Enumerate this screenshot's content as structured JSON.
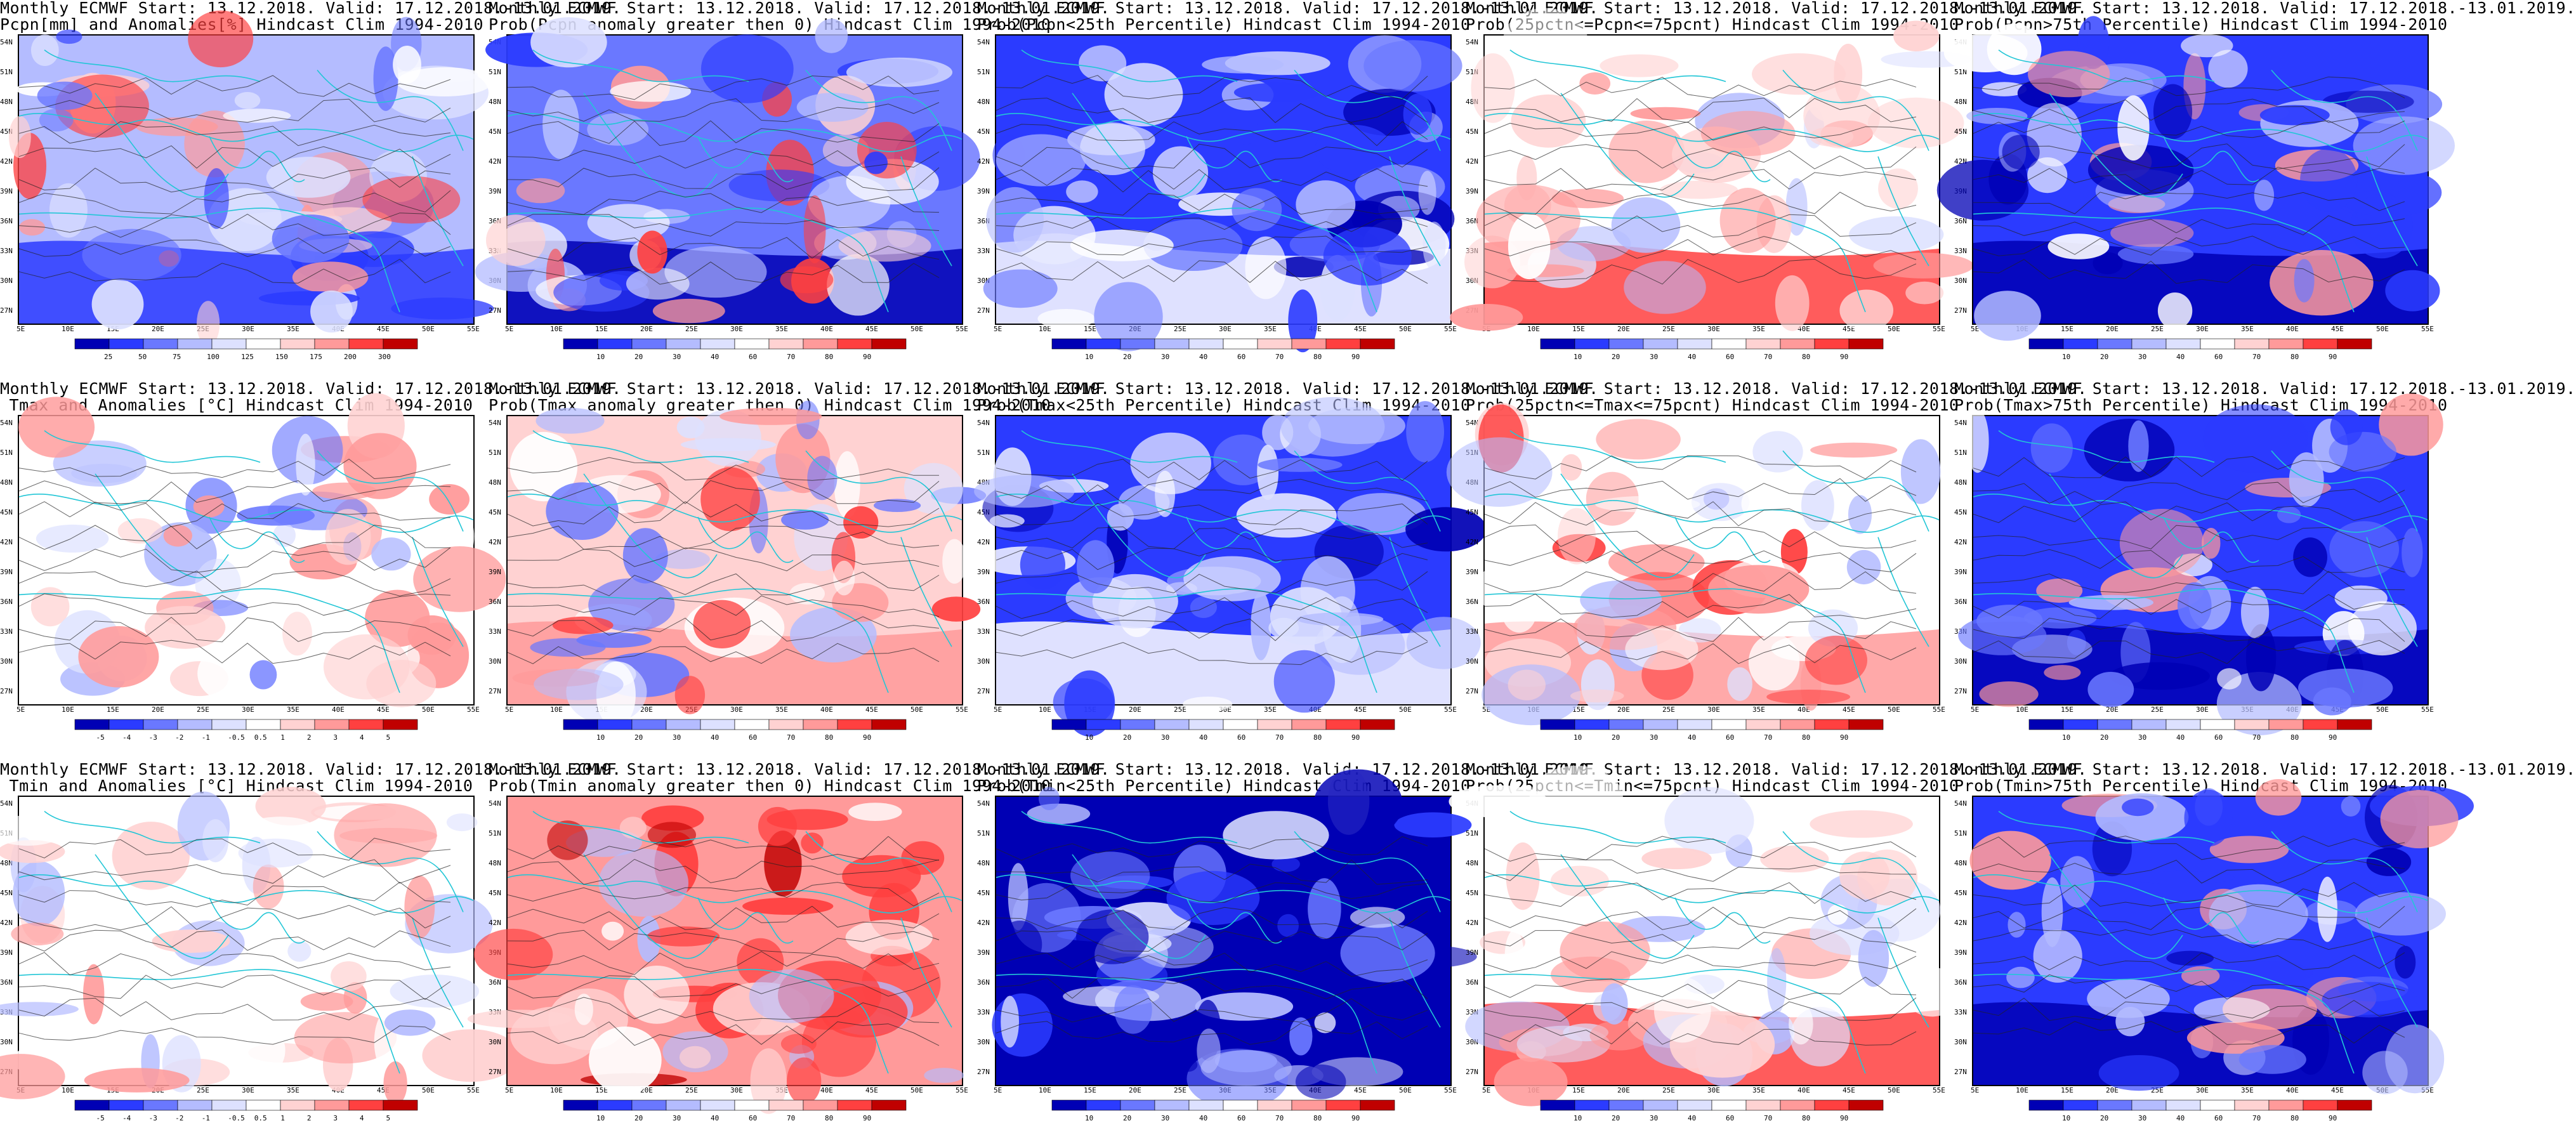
{
  "figure": {
    "lat_labels": [
      "54N",
      "51N",
      "48N",
      "45N",
      "42N",
      "39N",
      "36N",
      "33N",
      "30N",
      "27N"
    ],
    "lon_labels": [
      "5E",
      "10E",
      "15E",
      "20E",
      "25E",
      "30E",
      "35E",
      "40E",
      "45E",
      "50E",
      "55E"
    ],
    "palette": {
      "deep_blue": "#0000b4",
      "blue": "#2b3bff",
      "mid_blue": "#6a78ff",
      "light_blue": "#b4bcff",
      "pale_blue": "#dde1ff",
      "white": "#ffffff",
      "pale_red": "#ffd2d2",
      "light_red": "#ff9a9a",
      "red": "#ff4040",
      "deep_red": "#c00000",
      "coast": "#22c6d6",
      "contour": "#222222"
    }
  },
  "panels": [
    {
      "line1": "Monthly ECMWF Start: 13.12.2018. Valid: 17.12.2018.-13.01.2019.",
      "line2": "Pcpn[mm] and Anomalies[%] Hindcast Clim 1994-2010",
      "scheme": "pcpn_anom",
      "ticks": [
        "25",
        "50",
        "75",
        "100",
        "125",
        "150",
        "175",
        "200",
        "300"
      ]
    },
    {
      "line1": "Monthly ECMWF Start: 13.12.2018. Valid: 17.12.2018.-13.01.2019.",
      "line2": "Prob(Pcpn anomaly greater then 0) Hindcast Clim 1994-2010",
      "scheme": "prob_pos",
      "ticks": [
        "10",
        "20",
        "30",
        "40",
        "60",
        "70",
        "80",
        "90"
      ]
    },
    {
      "line1": "Monthly ECMWF Start: 13.12.2018. Valid: 17.12.2018.-13.01.2019.",
      "line2": "Prob(Pcpn<25th Percentile) Hindcast Clim 1994-2010",
      "scheme": "prob_low",
      "ticks": [
        "10",
        "20",
        "30",
        "40",
        "60",
        "70",
        "80",
        "90"
      ]
    },
    {
      "line1": "Monthly ECMWF Start: 13.12.2018. Valid: 17.12.2018.-13.01.2019.",
      "line2": "Prob(25pctn<=Pcpn<=75pcnt) Hindcast Clim 1994-2010",
      "scheme": "prob_mid",
      "ticks": [
        "10",
        "20",
        "30",
        "40",
        "60",
        "70",
        "80",
        "90"
      ]
    },
    {
      "line1": "Monthly ECMWF Start: 13.12.2018. Valid: 17.12.2018.-13.01.2019.",
      "line2": "Prob(Pcpn>75th Percentile) Hindcast Clim 1994-2010",
      "scheme": "prob_high",
      "ticks": [
        "10",
        "20",
        "30",
        "40",
        "60",
        "70",
        "80",
        "90"
      ]
    },
    {
      "line1": "Monthly ECMWF Start: 13.12.2018. Valid: 17.12.2018.-13.01.2019.",
      "line2": "Tmax and Anomalies [°C] Hindcast Clim 1994-2010",
      "scheme": "temp_anom",
      "ticks": [
        "-5",
        "-4",
        "-3",
        "-2",
        "-1",
        "-0.5",
        "0.5",
        "1",
        "2",
        "3",
        "4",
        "5"
      ]
    },
    {
      "line1": "Monthly ECMWF Start: 13.12.2018. Valid: 17.12.2018.-13.01.2019.",
      "line2": "Prob(Tmax anomaly greater then 0) Hindcast Clim 1994-2010",
      "scheme": "prob_pos_t",
      "ticks": [
        "10",
        "20",
        "30",
        "40",
        "60",
        "70",
        "80",
        "90"
      ]
    },
    {
      "line1": "Monthly ECMWF Start: 13.12.2018. Valid: 17.12.2018.-13.01.2019.",
      "line2": "Prob(Tmax<25th Percentile) Hindcast Clim 1994-2010",
      "scheme": "prob_low",
      "ticks": [
        "10",
        "20",
        "30",
        "40",
        "60",
        "70",
        "80",
        "90"
      ]
    },
    {
      "line1": "Monthly ECMWF Start: 13.12.2018. Valid: 17.12.2018.-13.01.2019.",
      "line2": "Prob(25pctn<=Tmax<=75pcnt) Hindcast Clim 1994-2010",
      "scheme": "prob_mid_t",
      "ticks": [
        "10",
        "20",
        "30",
        "40",
        "60",
        "70",
        "80",
        "90"
      ]
    },
    {
      "line1": "Monthly ECMWF Start: 13.12.2018. Valid: 17.12.2018.-13.01.2019.",
      "line2": "Prob(Tmax>75th Percentile) Hindcast Clim 1994-2010",
      "scheme": "prob_high",
      "ticks": [
        "10",
        "20",
        "30",
        "40",
        "60",
        "70",
        "80",
        "90"
      ]
    },
    {
      "line1": "Monthly ECMWF Start: 13.12.2018. Valid: 17.12.2018.-13.01.2019.",
      "line2": "Tmin and Anomalies [°C] Hindcast Clim 1994-2010",
      "scheme": "temp_anom_min",
      "ticks": [
        "-5",
        "-4",
        "-3",
        "-2",
        "-1",
        "-0.5",
        "0.5",
        "1",
        "2",
        "3",
        "4",
        "5"
      ]
    },
    {
      "line1": "Monthly ECMWF Start: 13.12.2018. Valid: 17.12.2018.-13.01.2019.",
      "line2": "Prob(Tmin anomaly greater then 0) Hindcast Clim 1994-2010",
      "scheme": "prob_pos_min",
      "ticks": [
        "10",
        "20",
        "30",
        "40",
        "60",
        "70",
        "80",
        "90"
      ]
    },
    {
      "line1": "Monthly ECMWF Start: 13.12.2018. Valid: 17.12.2018.-13.01.2019.",
      "line2": "Prob(Tmin<25th Percentile) Hindcast Clim 1994-2010",
      "scheme": "prob_low_deep",
      "ticks": [
        "10",
        "20",
        "30",
        "40",
        "60",
        "70",
        "80",
        "90"
      ]
    },
    {
      "line1": "Monthly ECMWF Start: 13.12.2018. Valid: 17.12.2018.-13.01.2019.",
      "line2": "Prob(25pctn<=Tmin<=75pcnt) Hindcast Clim 1994-2010",
      "scheme": "prob_mid",
      "ticks": [
        "10",
        "20",
        "30",
        "40",
        "60",
        "70",
        "80",
        "90"
      ]
    },
    {
      "line1": "Monthly ECMWF Start: 13.12.2018. Valid: 17.12.2018.-13.01.2019.",
      "line2": "Prob(Tmin>75th Percentile) Hindcast Clim 1994-2010",
      "scheme": "prob_high",
      "ticks": [
        "10",
        "20",
        "30",
        "40",
        "60",
        "70",
        "80",
        "90"
      ]
    }
  ]
}
